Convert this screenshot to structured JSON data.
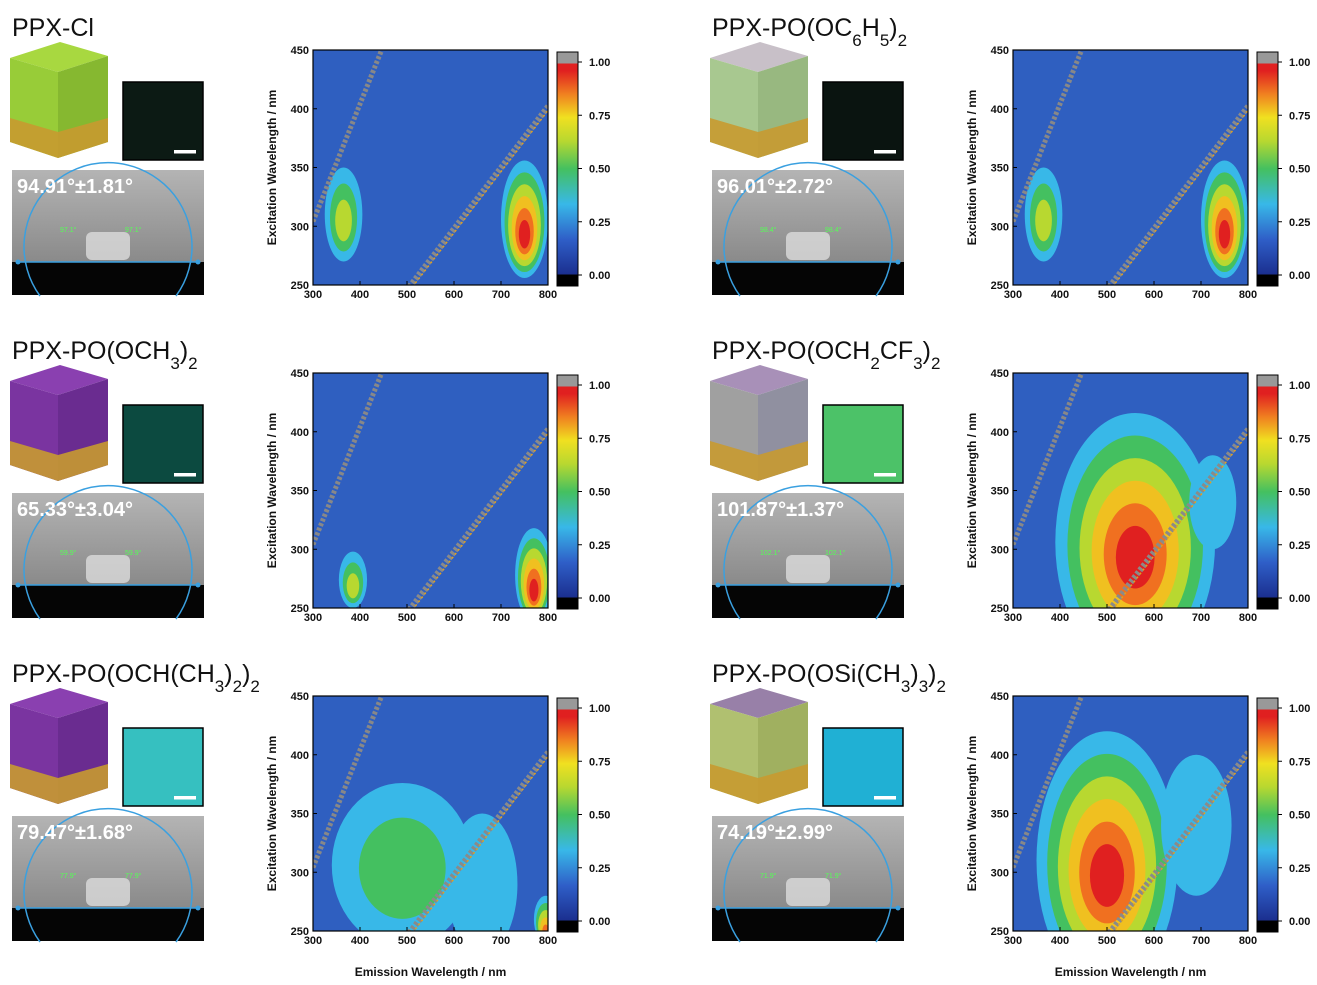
{
  "panels": [
    {
      "title": [
        "PPX-Cl"
      ],
      "contact_angle": "94.91°±1.81°",
      "droplet_angles": [
        "97.1°",
        "97.1°"
      ]
    },
    {
      "title": [
        "PPX-PO(OC",
        "6",
        "H",
        "5",
        ")",
        "2"
      ],
      "contact_angle": "96.01°±2.72°",
      "droplet_angles": [
        "98.4°",
        "98.4°"
      ]
    },
    {
      "title": [
        "PPX-PO(OCH",
        "3",
        ")",
        "2"
      ],
      "contact_angle": "65.33°±3.04°",
      "droplet_angles": [
        "59.9°",
        "59.9°"
      ]
    },
    {
      "title": [
        "PPX-PO(OCH",
        "2",
        "CF",
        "3",
        ")",
        "2"
      ],
      "contact_angle": "101.87°±1.37°",
      "droplet_angles": [
        "102.1°",
        "102.1°"
      ]
    },
    {
      "title": [
        "PPX-PO(OCH(CH",
        "3",
        ")",
        "2",
        ")",
        "2"
      ],
      "contact_angle": "79.47°±1.68°",
      "droplet_angles": [
        "77.9°",
        "77.9°"
      ]
    },
    {
      "title": [
        "PPX-PO(OSi(CH",
        "3",
        ")",
        "3",
        ")",
        "2"
      ],
      "contact_angle": "74.19°±2.99°",
      "droplet_angles": [
        "71.9°",
        "71.9°"
      ]
    }
  ],
  "axes": {
    "xlabel": "Emission Wavelength / nm",
    "ylabel": "Excitation Wavelength / nm",
    "xlim": [
      300,
      800
    ],
    "xticks": [
      300,
      400,
      500,
      600,
      700,
      800
    ],
    "ylim": [
      250,
      450
    ],
    "yticks": [
      250,
      300,
      350,
      400,
      450
    ],
    "colorbar_lim": [
      0,
      1
    ],
    "colorbar_ticks": [
      {
        "value": 0,
        "label": "0.00"
      },
      {
        "value": 0.25,
        "label": "0.25"
      },
      {
        "value": 0.5,
        "label": "0.50"
      },
      {
        "value": 0.75,
        "label": "0.75"
      },
      {
        "value": 1,
        "label": "1.00"
      }
    ]
  }
}
